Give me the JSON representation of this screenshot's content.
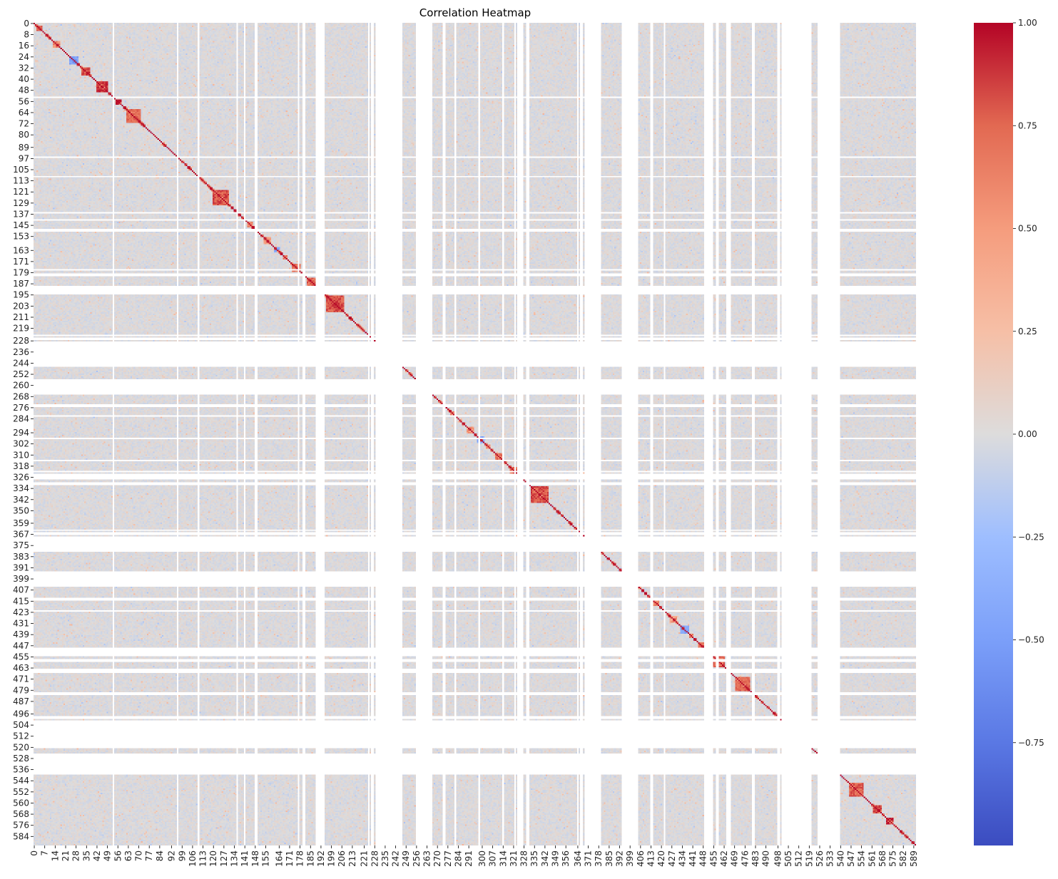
{
  "chart_data": {
    "type": "heatmap",
    "title": "Correlation Heatmap",
    "xlabel": "",
    "ylabel": "",
    "n_variables": 591,
    "colormap": "coolwarm",
    "value_range": [
      -1.0,
      1.0
    ],
    "colorbar_ticks": [
      {
        "value": 1.0,
        "label": "1.00"
      },
      {
        "value": 0.75,
        "label": "0.75"
      },
      {
        "value": 0.5,
        "label": "0.50"
      },
      {
        "value": 0.25,
        "label": "0.25"
      },
      {
        "value": 0.0,
        "label": "0.00"
      },
      {
        "value": -0.25,
        "label": "−0.25"
      },
      {
        "value": -0.5,
        "label": "−0.50"
      },
      {
        "value": -0.75,
        "label": "−0.75"
      }
    ],
    "y_tick_labels": [
      0,
      8,
      16,
      24,
      32,
      40,
      48,
      56,
      64,
      72,
      80,
      89,
      97,
      105,
      113,
      121,
      129,
      137,
      145,
      153,
      163,
      171,
      179,
      187,
      195,
      203,
      211,
      219,
      228,
      236,
      244,
      252,
      260,
      268,
      276,
      284,
      294,
      302,
      310,
      318,
      326,
      334,
      342,
      350,
      359,
      367,
      375,
      383,
      391,
      399,
      407,
      415,
      423,
      431,
      439,
      447,
      455,
      463,
      471,
      479,
      487,
      496,
      504,
      512,
      520,
      528,
      536,
      544,
      552,
      560,
      568,
      576,
      584
    ],
    "x_tick_labels": [
      0,
      7,
      14,
      21,
      28,
      35,
      42,
      49,
      56,
      63,
      70,
      77,
      84,
      92,
      99,
      106,
      113,
      120,
      127,
      134,
      141,
      148,
      155,
      164,
      171,
      178,
      185,
      192,
      199,
      206,
      213,
      221,
      228,
      235,
      242,
      249,
      256,
      263,
      270,
      277,
      284,
      291,
      300,
      307,
      314,
      321,
      328,
      335,
      342,
      349,
      356,
      364,
      371,
      378,
      385,
      392,
      399,
      406,
      413,
      420,
      427,
      434,
      441,
      448,
      455,
      462,
      469,
      476,
      483,
      490,
      498,
      505,
      512,
      519,
      526,
      533,
      540,
      547,
      554,
      561,
      568,
      575,
      582,
      589
    ],
    "constant_variables": [
      53,
      96,
      110,
      136,
      141,
      148,
      149,
      177,
      180,
      181,
      189,
      190,
      191,
      192,
      193,
      194,
      224,
      226,
      227,
      229,
      230,
      231,
      232,
      233,
      234,
      235,
      236,
      237,
      238,
      239,
      240,
      241,
      242,
      243,
      244,
      245,
      246,
      256,
      257,
      258,
      259,
      260,
      261,
      262,
      263,
      264,
      265,
      266,
      274,
      275,
      282,
      298,
      314,
      322,
      324,
      325,
      326,
      327,
      330,
      331,
      364,
      366,
      367,
      369,
      370,
      371,
      372,
      373,
      374,
      375,
      376,
      377,
      378,
      379,
      394,
      395,
      396,
      397,
      398,
      399,
      400,
      401,
      402,
      403,
      404,
      413,
      414,
      422,
      449,
      450,
      451,
      452,
      453,
      454,
      457,
      458,
      464,
      465,
      466,
      481,
      482,
      498,
      499,
      501,
      502,
      503,
      504,
      505,
      506,
      507,
      508,
      509,
      510,
      511,
      512,
      513,
      514,
      515,
      516,
      517,
      518,
      519,
      520,
      525,
      526,
      527,
      528,
      529,
      530,
      531,
      532,
      533,
      534,
      535,
      536,
      537,
      538,
      539
    ],
    "correlation_blocks": [
      {
        "variables": [
          2,
          3,
          4,
          5
        ],
        "r": 0.75
      },
      {
        "variables": [
          13,
          14,
          15,
          16,
          17
        ],
        "r": 0.6
      },
      {
        "variables": [
          26,
          27,
          28
        ],
        "r": 0.8
      },
      {
        "variables": [
          32,
          33,
          34,
          35,
          36,
          37
        ],
        "r": 0.85
      },
      {
        "variables": [
          42,
          43,
          44,
          45,
          46,
          47,
          48,
          49
        ],
        "r": 0.9
      },
      {
        "variables": [
          55,
          56,
          57,
          58
        ],
        "r": 1.0
      },
      {
        "variables": [
          62,
          63,
          64,
          65,
          66,
          67,
          68,
          69,
          70,
          71
        ],
        "r": 0.7
      },
      {
        "variables": [
          120,
          121,
          122,
          123,
          124,
          125,
          126,
          127,
          128,
          129,
          130
        ],
        "r": 0.8
      },
      {
        "variables": [
          196,
          197,
          198,
          199,
          200,
          201,
          202,
          203,
          204,
          205,
          206,
          207
        ],
        "r": 0.8
      },
      {
        "variables": [
          333,
          334,
          335,
          336,
          337,
          338,
          339,
          340,
          341,
          342,
          343,
          344
        ],
        "r": 0.8
      },
      {
        "variables": [
          470,
          471,
          472,
          473,
          474,
          475,
          476,
          477,
          478,
          479
        ],
        "r": 0.75
      },
      {
        "variables": [
          546,
          547,
          548,
          549,
          550,
          551,
          552,
          553,
          554,
          555
        ],
        "r": 0.75
      },
      {
        "variables": [
          562,
          563,
          564,
          565,
          566,
          567
        ],
        "r": 0.85
      },
      {
        "variables": [
          571,
          572,
          573,
          574,
          575
        ],
        "r": 0.9
      }
    ],
    "negative_blocks": [
      {
        "variables": [
          24,
          25,
          26,
          27,
          28,
          29
        ],
        "r": -0.5
      },
      {
        "variables": [
          161,
          162,
          163,
          164
        ],
        "r": -0.45
      },
      {
        "variables": [
          297,
          298,
          299,
          300,
          301
        ],
        "r": -0.45
      },
      {
        "variables": [
          433,
          434,
          435,
          436,
          437,
          438
        ],
        "r": -0.45
      }
    ]
  }
}
